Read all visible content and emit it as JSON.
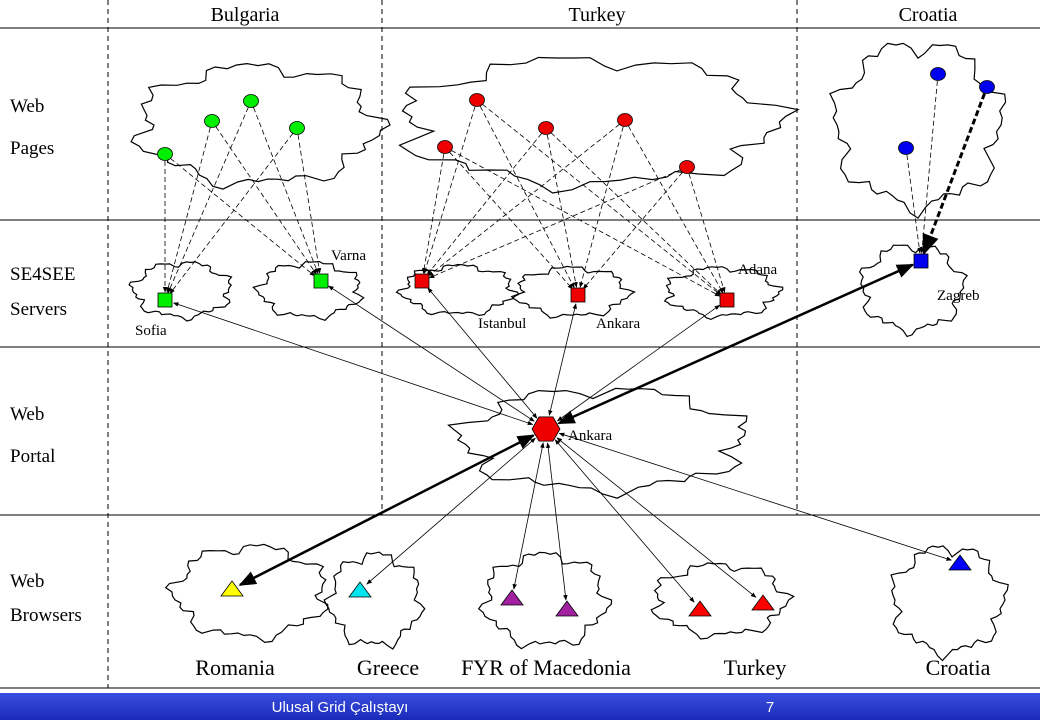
{
  "header": {
    "columns": [
      "Bulgaria",
      "Turkey",
      "Croatia"
    ]
  },
  "rows": [
    {
      "lines": [
        "Web",
        "Pages"
      ]
    },
    {
      "lines": [
        "SE4SEE",
        "Servers"
      ]
    },
    {
      "lines": [
        "Web",
        "Portal"
      ]
    },
    {
      "lines": [
        "Web",
        "Browsers"
      ]
    }
  ],
  "servers": [
    "Sofia",
    "Varna",
    "Istanbul",
    "Ankara",
    "Adana",
    "Zagreb"
  ],
  "portal": "Ankara",
  "browsers": [
    "Romania",
    "Greece",
    "FYR of Macedonia",
    "Turkey",
    "Croatia"
  ],
  "footer": {
    "title": "Ulusal Grid Çalıştayı",
    "page": "7"
  }
}
